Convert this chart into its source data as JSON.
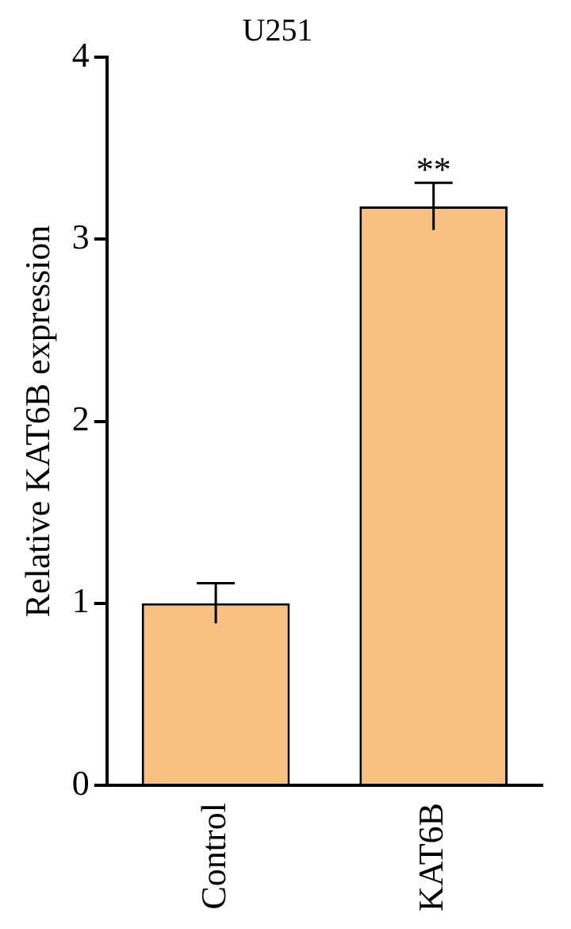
{
  "chart_data": {
    "type": "bar",
    "title": "U251",
    "ylabel": "Relative KAT6B expression",
    "categories": [
      "Control",
      "KAT6B"
    ],
    "values": [
      1.0,
      3.18
    ],
    "errors": [
      0.11,
      0.13
    ],
    "color": "#f9c083",
    "ylim": [
      0,
      4
    ],
    "yticks": [
      0,
      1,
      2,
      3,
      4
    ],
    "grid": false,
    "legend": false,
    "annotations": [
      {
        "text": "**",
        "x": "KAT6B",
        "y": 3.31
      }
    ]
  }
}
